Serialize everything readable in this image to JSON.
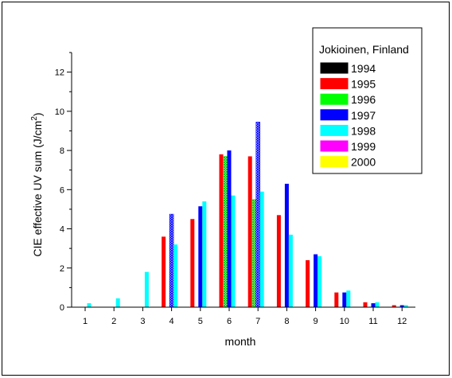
{
  "chart_data": {
    "type": "bar",
    "xlabel": "month",
    "ylabel": "CIE effective UV sum (J/cm",
    "ylabel_sup": "2",
    "ylabel_tail": ")",
    "categories": [
      "1",
      "2",
      "3",
      "4",
      "5",
      "6",
      "7",
      "8",
      "9",
      "10",
      "11",
      "12"
    ],
    "ylim": [
      0,
      13
    ],
    "yticks": [
      0,
      2,
      4,
      6,
      8,
      10,
      12
    ],
    "legend": {
      "title": "Jokioinen, Finland",
      "placement": "top-right",
      "entries": [
        "1994",
        "1995",
        "1996",
        "1997",
        "1998",
        "1999",
        "2000"
      ]
    },
    "series": [
      {
        "name": "1994",
        "color": "#000000",
        "pattern": "solid",
        "values": [
          null,
          null,
          null,
          null,
          null,
          null,
          null,
          null,
          null,
          null,
          null,
          null
        ]
      },
      {
        "name": "1995",
        "color": "#ff0000",
        "pattern": "solid",
        "values": [
          null,
          null,
          null,
          3.6,
          4.5,
          7.8,
          7.7,
          4.7,
          2.4,
          0.75,
          0.25,
          0.1
        ]
      },
      {
        "name": "1996",
        "color": "#00ff00",
        "pattern": "hatched",
        "values": [
          null,
          null,
          null,
          null,
          null,
          7.7,
          5.5,
          null,
          null,
          null,
          null,
          null
        ]
      },
      {
        "name": "1997",
        "color": "#0000ff",
        "pattern": "solid",
        "values": [
          null,
          null,
          null,
          4.75,
          5.15,
          8.0,
          9.45,
          6.3,
          2.7,
          0.75,
          0.2,
          0.1
        ]
      },
      {
        "name": "1998",
        "color": "#00ffff",
        "pattern": "solid",
        "values": [
          0.2,
          0.45,
          1.8,
          3.2,
          5.4,
          5.7,
          5.9,
          3.7,
          2.6,
          0.85,
          0.25,
          0.1
        ]
      },
      {
        "name": "1999",
        "color": "#ff00ff",
        "pattern": "solid",
        "values": [
          null,
          null,
          null,
          null,
          null,
          null,
          null,
          null,
          null,
          null,
          null,
          null
        ]
      },
      {
        "name": "2000",
        "color": "#ffff00",
        "pattern": "solid",
        "values": [
          null,
          null,
          null,
          null,
          null,
          null,
          null,
          null,
          null,
          null,
          null,
          null
        ]
      }
    ],
    "hatched_bars": [
      {
        "month": "4",
        "base_color": "#0000ff",
        "value": 4.75
      },
      {
        "month": "6",
        "base_color": "#00ff00",
        "value": 7.7
      },
      {
        "month": "7",
        "base_color": "#0000ff",
        "value": 9.45
      }
    ]
  }
}
